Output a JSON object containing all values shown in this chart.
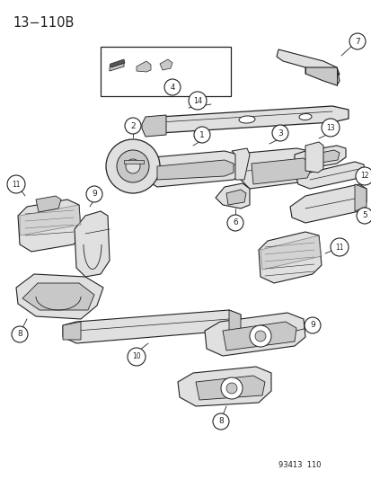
{
  "title_text": "13−110B",
  "footer_text": "93413  110",
  "bg_color": "#ffffff",
  "line_color": "#222222",
  "fig_width": 4.14,
  "fig_height": 5.33,
  "dpi": 100,
  "gray_fill": "#c8c8c8",
  "light_fill": "#e0e0e0",
  "white_fill": "#ffffff"
}
